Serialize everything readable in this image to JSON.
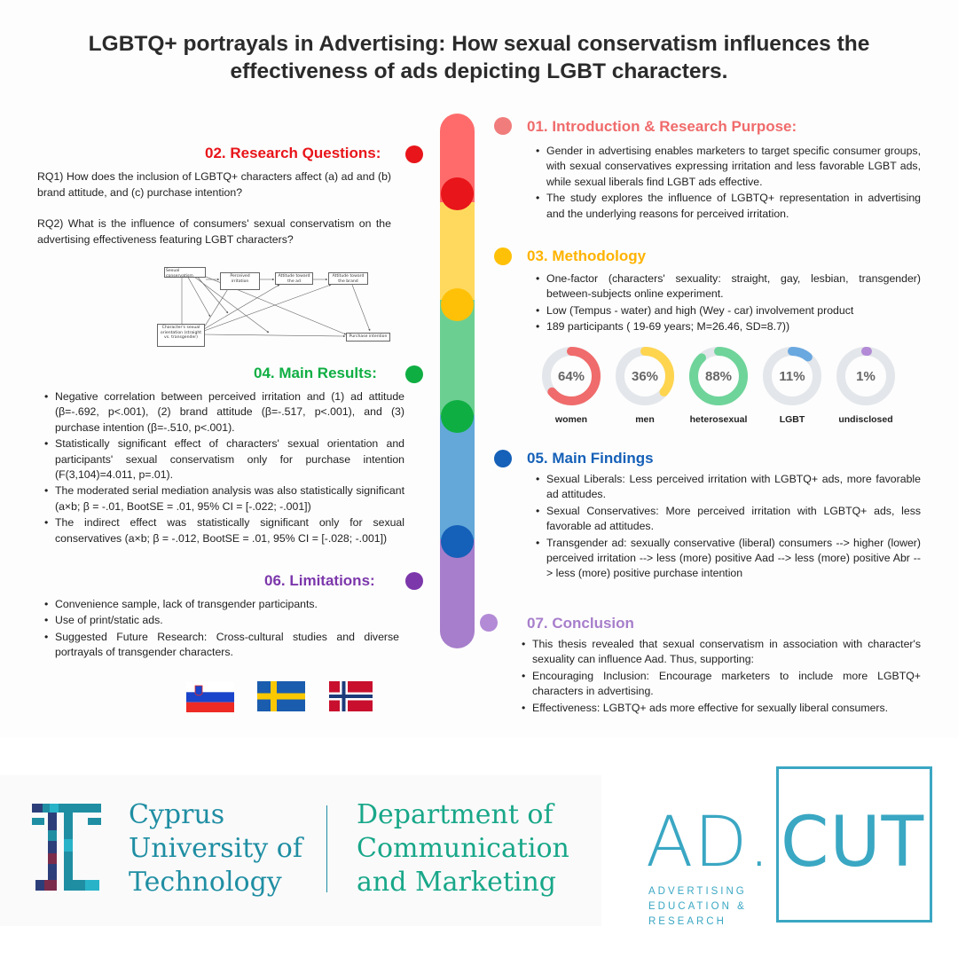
{
  "title": "LGBTQ+ portrayals in Advertising: How sexual conservatism influences the effectiveness of ads depicting LGBT characters.",
  "colors": {
    "red": "#e8151a",
    "pink": "#f06b6b",
    "yellow": "#ffc107",
    "green": "#0fae43",
    "blue": "#1560b8",
    "purple": "#7c37ab"
  },
  "intro": {
    "heading": "01. Introduction & Research Purpose:",
    "bullets": [
      "Gender in advertising enables marketers to target specific consumer groups, with sexual conservatives expressing irritation and less favorable LGBT ads, while sexual liberals find LGBT ads effective.",
      "The study explores the influence of LGBTQ+ representation in advertising and the underlying reasons for perceived irritation."
    ]
  },
  "questions": {
    "heading": "02. Research Questions:",
    "rq1": "RQ1) How does the inclusion of LGBTQ+ characters affect (a) ad and (b) brand attitude, and (c) purchase intention?",
    "rq2": "RQ2) What is the influence of consumers' sexual conservatism on the advertising effectiveness featuring LGBT characters?"
  },
  "diagram": {
    "sexual_conservatism": "Sexual conservatism",
    "perceived_irritation": "Perceived irritation",
    "attitude_ad": "Attitude toward the ad",
    "attitude_brand": "Attitude toward the brand",
    "character_orientation": "Character's sexual orientation (straight vs. transgender)",
    "purchase_intention": "Purchase intention"
  },
  "methodology": {
    "heading": "03. Methodology",
    "bullets": [
      "One-factor (characters' sexuality: straight, gay, lesbian, transgender) between-subjects online experiment.",
      " Low (Tempus - water) and high (Wey - car) involvement product",
      "189 participants  ( 19-69 years; M=26.46, SD=8.7))"
    ],
    "donuts": [
      {
        "pct": "64%",
        "value": 0.64,
        "label": "women",
        "color": "#f06b6b"
      },
      {
        "pct": "36%",
        "value": 0.36,
        "label": "men",
        "color": "#ffd54f"
      },
      {
        "pct": "88%",
        "value": 0.88,
        "label": "heterosexual",
        "color": "#6fd49a"
      },
      {
        "pct": "11%",
        "value": 0.11,
        "label": "LGBT",
        "color": "#6aa8e0"
      },
      {
        "pct": "1%",
        "value": 0.01,
        "label": "undisclosed",
        "color": "#b28ad6"
      }
    ]
  },
  "results": {
    "heading": "04. Main Results:",
    "bullets": [
      "Negative correlation between perceived irritation and   (1) ad attitude (β=-.692, p<.001), (2) brand attitude (β=-.517, p<.001), and (3) purchase intention (β=-.510, p<.001).",
      "Statistically significant effect of characters' sexual orientation and participants' sexual conservatism only for purchase intention (F(3,104)=4.011, p=.01).",
      "The moderated serial mediation analysis was also statistically significant (a×b; β = -.01, BootSE = .01, 95% CI = [-.022; -.001])",
      "The indirect effect was statistically significant only for sexual conservatives (a×b; β = -.012, BootSE = .01, 95% CI = [-.028; -.001])"
    ]
  },
  "findings": {
    "heading": "05. Main Findings",
    "bullets": [
      "Sexual Liberals: Less perceived irritation with LGBTQ+ ads, more favorable ad attitudes.",
      "Sexual Conservatives: More perceived irritation with LGBTQ+ ads, less favorable ad attitudes.",
      "Transgender ad: sexually conservative (liberal) consumers --> higher (lower) perceived irritation --> less (more) positive Aad --> less (more) positive Abr --> less (more) positive purchase intention"
    ]
  },
  "limitations": {
    "heading": "06. Limitations:",
    "bullets": [
      "Convenience sample, lack of transgender participants.",
      " Use of print/static ads.",
      "Suggested Future Research: Cross-cultural studies and diverse portrayals of transgender characters."
    ]
  },
  "conclusion": {
    "heading": "07. Conclusion",
    "bullets": [
      "This thesis revealed that sexual conservatism in association with character's sexuality can influence Aad. Thus, supporting:",
      "Encouraging Inclusion: Encourage marketers to include more LGBTQ+ characters in advertising.",
      "Effectiveness: LGBTQ+ ads more effective for sexually liberal consumers."
    ]
  },
  "footer": {
    "university": [
      "Cyprus",
      "University of",
      "Technology"
    ],
    "department": [
      "Department of",
      "Communication",
      "and Marketing"
    ],
    "adcut_ad": "AD.",
    "adcut_cut": "CUT",
    "adcut_sub": [
      "ADVERTISING",
      "EDUCATION &",
      "RESEARCH"
    ]
  }
}
